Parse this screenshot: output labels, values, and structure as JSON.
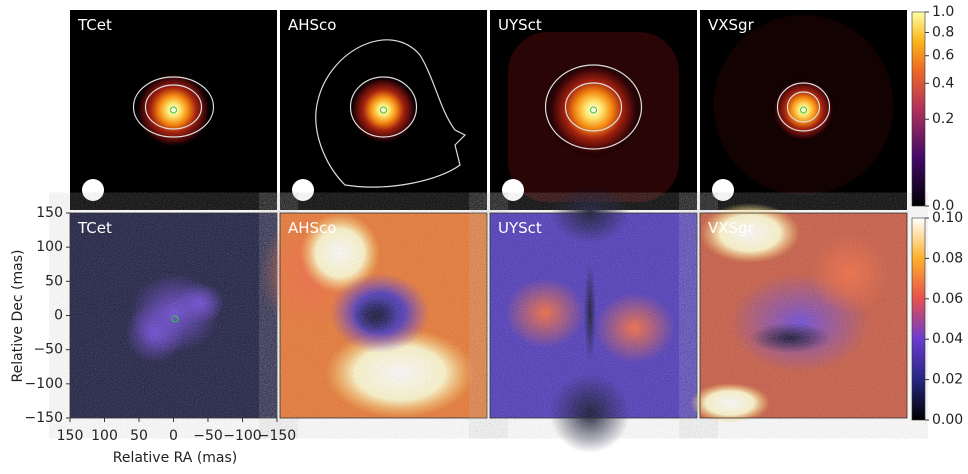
{
  "top_row": {
    "panels": [
      "TCet",
      "AHSco",
      "UYSct",
      "VXSgr"
    ]
  },
  "bottom_row": {
    "panels": [
      "TCet",
      "AHSco",
      "UYSct",
      "VXSgr"
    ]
  },
  "axes": {
    "xlabel": "Relative RA (mas)",
    "ylabel": "Relative Dec (mas)",
    "xlim": [
      150,
      -150
    ],
    "xticks": [
      150,
      100,
      50,
      0,
      {
        "value": -50,
        "label": "−50"
      },
      {
        "value": -100,
        "label": "−100"
      },
      {
        "value": -150,
        "label": "−150"
      }
    ],
    "ylim": [
      -150,
      150
    ],
    "yticks": [
      150,
      100,
      50,
      0,
      {
        "value": -50,
        "label": "−50"
      },
      {
        "value": -100,
        "label": "−100"
      },
      {
        "value": -150,
        "label": "−150"
      }
    ]
  },
  "colorbars": [
    {
      "lim": [
        0,
        1
      ],
      "scale": "sqrt",
      "ticks": [
        {
          "value": 0,
          "label": "0.0"
        },
        0.2,
        0.4,
        0.6,
        0.8,
        {
          "value": 1,
          "label": "1.0"
        }
      ]
    },
    {
      "lim": [
        0,
        0.1
      ],
      "scale": "linear",
      "ticks": [
        {
          "value": 0,
          "label": "0.00"
        },
        0.02,
        0.04,
        0.06,
        0.08,
        {
          "value": 0.1,
          "label": "0.10"
        }
      ]
    }
  ]
}
